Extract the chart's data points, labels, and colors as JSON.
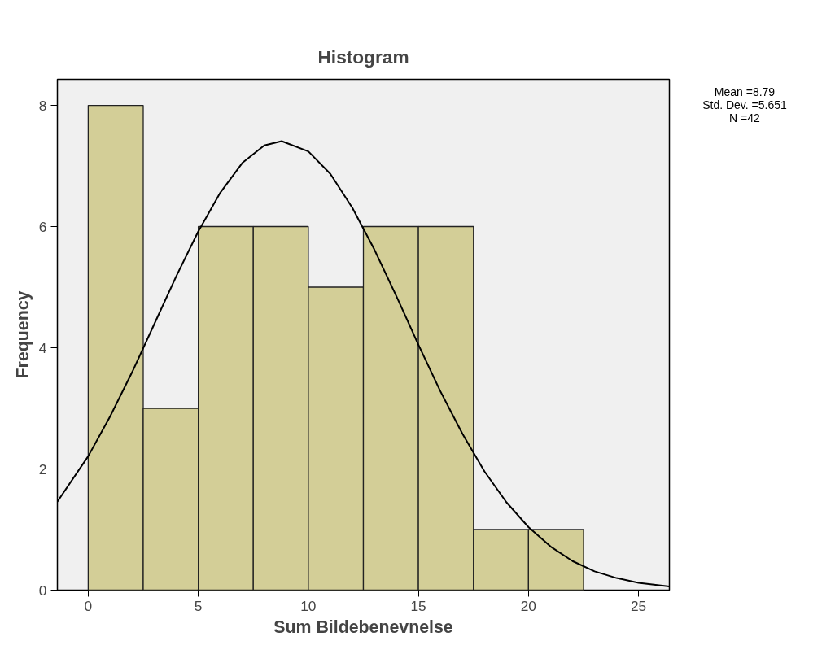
{
  "chart_data": {
    "type": "histogram",
    "title": "Histogram",
    "xlabel": "Sum Bildebenevnelse",
    "ylabel": "Frequency",
    "bins": [
      0,
      2.5,
      5,
      7.5,
      10,
      12.5,
      15,
      17.5,
      20,
      22.5
    ],
    "values": [
      8,
      3,
      6,
      6,
      5,
      6,
      6,
      1,
      1
    ],
    "color": "#d3ce97",
    "series": [
      {
        "type": "line",
        "color": "#000000",
        "x": [
          -1.4,
          0,
          1,
          2,
          3,
          4,
          5,
          6,
          7,
          8,
          8.79,
          10,
          11,
          12,
          13,
          14,
          15,
          16,
          17,
          18,
          19,
          20,
          21,
          22,
          23,
          24,
          25,
          26.4
        ],
        "values": [
          1.46,
          2.21,
          2.87,
          3.6,
          4.39,
          5.18,
          5.92,
          6.56,
          7.05,
          7.34,
          7.41,
          7.24,
          6.87,
          6.31,
          5.62,
          4.85,
          4.05,
          3.28,
          2.58,
          1.96,
          1.45,
          1.04,
          0.72,
          0.48,
          0.31,
          0.2,
          0.12,
          0.06
        ]
      }
    ],
    "xlim": [
      -1.4,
      26.4
    ],
    "ylim": [
      0,
      8.43
    ],
    "xticks": [
      0,
      5,
      10,
      15,
      20,
      25
    ],
    "yticks": [
      0,
      2,
      4,
      6,
      8
    ],
    "grid": false,
    "annotations": [
      "Mean =8.79",
      "Std. Dev. =5.651",
      "N =42"
    ]
  }
}
